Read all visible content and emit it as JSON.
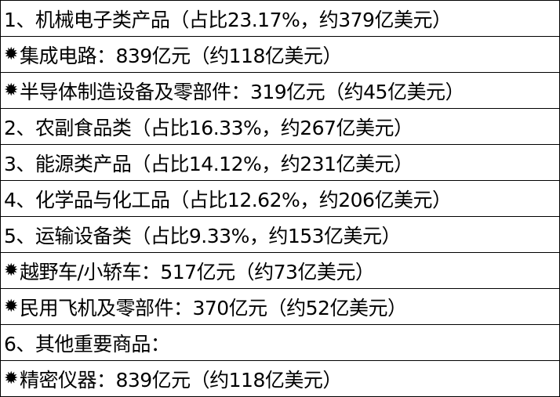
{
  "star_icon": "✹",
  "rows": [
    {
      "bullet": false,
      "text": "1、机械电子类产品（占比23.17%，约379亿美元）"
    },
    {
      "bullet": true,
      "text": "集成电路：839亿元（约118亿美元）"
    },
    {
      "bullet": true,
      "text": "半导体制造设备及零部件：319亿元（约45亿美元）"
    },
    {
      "bullet": false,
      "text": "2、农副食品类（占比16.33%，约267亿美元）"
    },
    {
      "bullet": false,
      "text": "3、能源类产品（占比14.12%，约231亿美元）"
    },
    {
      "bullet": false,
      "text": "4、化学品与化工品（占比12.62%，约206亿美元）"
    },
    {
      "bullet": false,
      "text": "5、运输设备类（占比9.33%，约153亿美元）"
    },
    {
      "bullet": true,
      "text": "越野车/小轿车：517亿元（约73亿美元）"
    },
    {
      "bullet": true,
      "text": "民用飞机及零部件：370亿元（约52亿美元）"
    },
    {
      "bullet": false,
      "text": "6、其他重要商品："
    },
    {
      "bullet": true,
      "text": "精密仪器：839亿元（约118亿美元）"
    }
  ]
}
